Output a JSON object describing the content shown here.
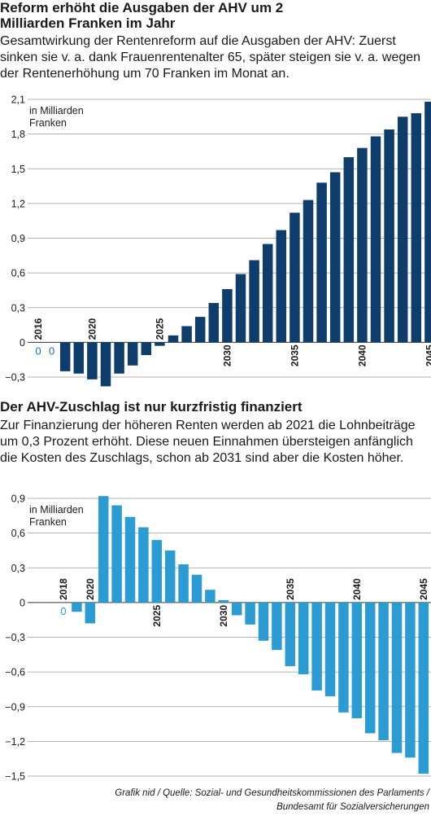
{
  "charts_text": {
    "title1": "Reform erhöht die Ausgaben der AHV um 2 Milliarden Franken im Jahr",
    "subtitle1": "Gesamtwirkung der Rentenreform auf die Ausgaben der AHV: Zuerst sinken sie v. a. dank Frauenrentenalter 65, später steigen sie v. a. wegen der Rentenerhöhung um 70 Franken im Monat an.",
    "title2": "Der AHV-Zuschlag ist nur kurzfristig finanziert",
    "subtitle2": "Zur Finanzierung der höheren Renten werden ab 2021 die Lohnbeiträge um 0,3 Prozent erhöht. Diese neuen Einnahmen übersteigen anfänglich die Kosten des Zuschlags, schon ab 2031 sind aber die Kosten höher.",
    "source_line1": "Grafik nid / Quelle: Sozial- und Gesundheitskommissionen des Parlaments /",
    "source_line2": "Bundesamt für Sozialversicherungen"
  },
  "colors": {
    "chart1_bar": "#0e3d6b",
    "chart2_bar": "#2a9bd3",
    "zero_label1": "#1f6fb2",
    "zero_label2": "#2c9fd6",
    "grid": "#9a9a9a"
  },
  "chart_data": [
    {
      "type": "bar",
      "title": "Reform erhöht die Ausgaben der AHV um 2 Milliarden Franken im Jahr",
      "subtitle": "Gesamtwirkung der Rentenreform auf die Ausgaben der AHV: Zuerst sinken sie v. a. dank Frauenrentenalter 65, später steigen sie v. a. wegen der Rentenerhöhung um 70 Franken im Monat an.",
      "unit_label": "in Milliarden Franken",
      "x": [
        2016,
        2017,
        2018,
        2019,
        2020,
        2021,
        2022,
        2023,
        2024,
        2025,
        2026,
        2027,
        2028,
        2029,
        2030,
        2031,
        2032,
        2033,
        2034,
        2035,
        2036,
        2037,
        2038,
        2039,
        2040,
        2041,
        2042,
        2043,
        2044,
        2045
      ],
      "values": [
        0,
        0,
        -0.25,
        -0.27,
        -0.32,
        -0.38,
        -0.27,
        -0.2,
        -0.11,
        -0.03,
        0.06,
        0.14,
        0.22,
        0.34,
        0.46,
        0.59,
        0.71,
        0.85,
        0.97,
        1.12,
        1.23,
        1.38,
        1.47,
        1.6,
        1.68,
        1.78,
        1.84,
        1.95,
        1.98,
        2.08
      ],
      "zero_labels": [
        "0",
        "0"
      ],
      "year_labels": [
        "2016",
        "2020",
        "2025",
        "2030",
        "2035",
        "2040",
        "2045"
      ],
      "yticks": [
        "2,1",
        "1,8",
        "1,5",
        "1,2",
        "0,9",
        "0,6",
        "0,3",
        "0",
        "−0,3"
      ],
      "ylim": [
        -0.3,
        2.1
      ],
      "grid": true
    },
    {
      "type": "bar",
      "title": "Der AHV-Zuschlag ist nur kurzfristig finanziert",
      "subtitle": "Zur Finanzierung der höheren Renten werden ab 2021 die Lohnbeiträge um 0,3 Prozent erhöht. Diese neuen Einnahmen übersteigen anfänglich die Kosten des Zuschlags, schon ab 2031 sind aber die Kosten höher.",
      "unit_label": "in Milliarden Franken",
      "x": [
        2018,
        2019,
        2020,
        2021,
        2022,
        2023,
        2024,
        2025,
        2026,
        2027,
        2028,
        2029,
        2030,
        2031,
        2032,
        2033,
        2034,
        2035,
        2036,
        2037,
        2038,
        2039,
        2040,
        2041,
        2042,
        2043,
        2044,
        2045
      ],
      "values": [
        0,
        -0.08,
        -0.18,
        0.92,
        0.84,
        0.74,
        0.65,
        0.54,
        0.45,
        0.33,
        0.24,
        0.11,
        0.02,
        -0.11,
        -0.19,
        -0.33,
        -0.41,
        -0.55,
        -0.62,
        -0.76,
        -0.81,
        -0.95,
        -1.0,
        -1.13,
        -1.19,
        -1.3,
        -1.34,
        -1.48
      ],
      "zero_labels": [
        "0"
      ],
      "year_labels": [
        "2018",
        "2020",
        "2025",
        "2030",
        "2035",
        "2040",
        "2045"
      ],
      "yticks": [
        "0,9",
        "0,6",
        "0,3",
        "0",
        "−0,3",
        "−0,6",
        "−0,9",
        "−1,2",
        "−1,5"
      ],
      "ylim": [
        -1.5,
        0.9
      ],
      "grid": true
    }
  ]
}
